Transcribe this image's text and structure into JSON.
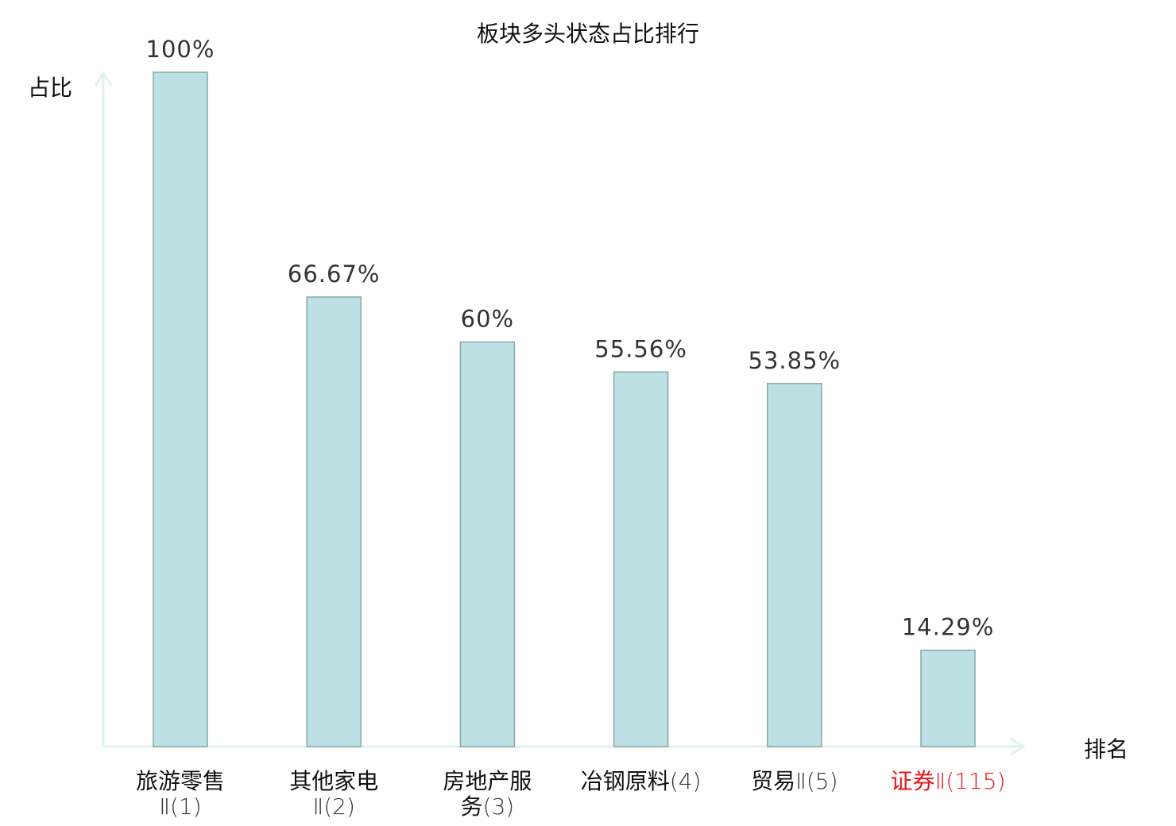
{
  "chart_data": {
    "type": "bar",
    "title": "板块多头状态占比排行",
    "ylabel": "占比",
    "xlabel": "排名",
    "ylim": [
      0,
      100
    ],
    "grid": false,
    "categories": [
      {
        "lines": [
          [
            {
              "t": "旅游零售",
              "s": "zh"
            }
          ],
          [
            {
              "t": "Ⅱ(1)",
              "s": "num"
            }
          ]
        ],
        "highlight": false
      },
      {
        "lines": [
          [
            {
              "t": "其他家电",
              "s": "zh"
            }
          ],
          [
            {
              "t": "Ⅱ(2)",
              "s": "num"
            }
          ]
        ],
        "highlight": false
      },
      {
        "lines": [
          [
            {
              "t": "房地产服",
              "s": "zh"
            }
          ],
          [
            {
              "t": "务",
              "s": "zh"
            },
            {
              "t": "(3)",
              "s": "num"
            }
          ]
        ],
        "highlight": false
      },
      {
        "lines": [
          [
            {
              "t": "冶钢原料",
              "s": "zh"
            },
            {
              "t": "(4)",
              "s": "num"
            }
          ]
        ],
        "highlight": false
      },
      {
        "lines": [
          [
            {
              "t": "贸易",
              "s": "zh"
            },
            {
              "t": "Ⅱ(5)",
              "s": "num"
            }
          ]
        ],
        "highlight": false
      },
      {
        "lines": [
          [
            {
              "t": "证券",
              "s": "zh"
            },
            {
              "t": "Ⅱ(115)",
              "s": "num"
            }
          ]
        ],
        "highlight": true
      }
    ],
    "values": [
      100,
      66.67,
      60,
      55.56,
      53.85,
      14.29
    ],
    "value_labels": [
      "100%",
      "66.67%",
      "60%",
      "55.56%",
      "53.85%",
      "14.29%"
    ],
    "colors": {
      "bar_fill": "#bde0e3",
      "bar_stroke": "#86a6aa",
      "axis": "#dff2ef",
      "highlight_text": "#e8141b",
      "text": "#111111",
      "number_text": "#333333"
    }
  }
}
